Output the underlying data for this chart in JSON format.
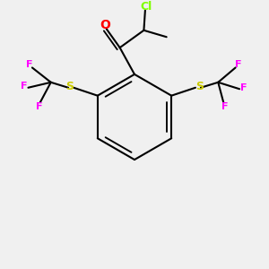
{
  "bg_color": "#f0f0f0",
  "bond_color": "#000000",
  "bond_lw": 1.5,
  "colors": {
    "O": "#ff0000",
    "S": "#cccc00",
    "F": "#ff00ff",
    "Cl": "#7fff00",
    "C": "#000000"
  },
  "font_size": 9,
  "font_size_small": 8
}
